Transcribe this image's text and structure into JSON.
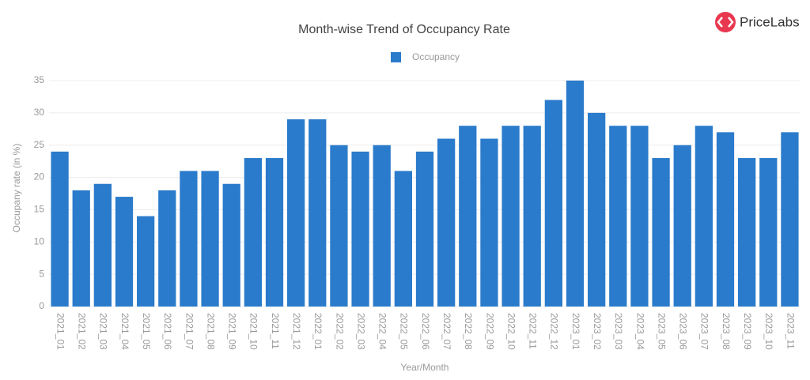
{
  "logo": "PriceLabs",
  "chart_data": {
    "type": "bar",
    "title": "Month-wise Trend of Occupancy Rate",
    "x_label": "Year/Month",
    "y_label": "Occupany rate (in %)",
    "categories": [
      "2021_01",
      "2021_02",
      "2021_03",
      "2021_04",
      "2021_05",
      "2021_06",
      "2021_07",
      "2021_08",
      "2021_09",
      "2021_10",
      "2021_11",
      "2021_12",
      "2022_01",
      "2022_02",
      "2022_03",
      "2022_04",
      "2022_05",
      "2022_06",
      "2022_07",
      "2022_08",
      "2022_09",
      "2022_10",
      "2022_11",
      "2022_12",
      "2023_01",
      "2023_02",
      "2023_03",
      "2023_04",
      "2023_05",
      "2023_06",
      "2023_07",
      "2023_08",
      "2023_09",
      "2023_10",
      "2023_11"
    ],
    "series": [
      {
        "name": "Occupancy",
        "color": "#2a7bcb",
        "values": [
          24,
          18,
          19,
          17,
          14,
          18,
          21,
          21,
          19,
          23,
          23,
          29,
          29,
          25,
          24,
          25,
          21,
          24,
          26,
          28,
          26,
          28,
          28,
          32,
          35,
          30,
          28,
          28,
          23,
          25,
          28,
          27,
          23,
          23,
          27
        ]
      }
    ],
    "ylim": [
      0,
      35
    ],
    "yticks": [
      0,
      5,
      10,
      15,
      20,
      25,
      30,
      35
    ],
    "grid": true,
    "legend": "top"
  }
}
